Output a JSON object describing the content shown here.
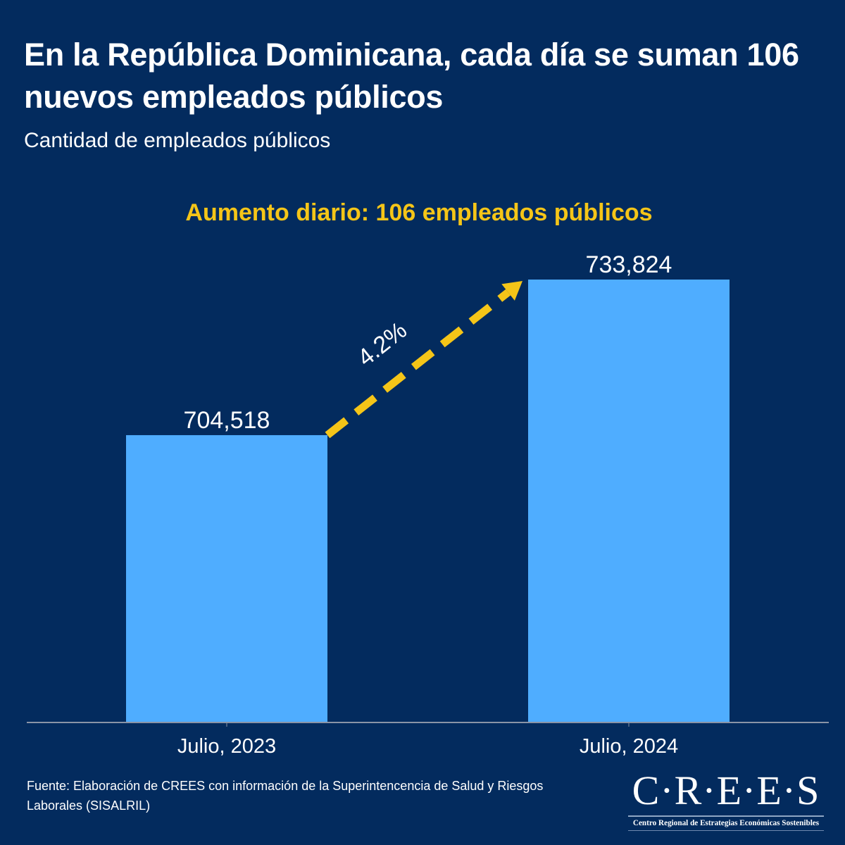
{
  "header": {
    "title": "En la República Dominicana, cada día se suman 106 nuevos empleados públicos",
    "subtitle": "Cantidad de empleados públicos"
  },
  "footer": {
    "source": "Fuente: Elaboración de CREES con información de la Superintencencia de Salud y Riesgos Laborales (SISALRIL)",
    "logo_mark": "C·R·E·E·S",
    "logo_subtitle": "Centro Regional de Estrategias Económicas Sostenibles"
  },
  "colors": {
    "background": "#032B5E",
    "bar": "#4FADFF",
    "highlight": "#F5C518",
    "text": "#FFFFFF",
    "axis": "#8A94A6"
  },
  "chart_data": {
    "type": "bar",
    "title": "Aumento diario: 106 empleados públicos",
    "xlabel": "",
    "ylabel": "",
    "categories": [
      "Julio, 2023",
      "Julio, 2024"
    ],
    "values": [
      704518,
      733824
    ],
    "data_labels": [
      "704,518",
      "733,824"
    ],
    "ylim": [
      650400,
      740000
    ],
    "grid": false,
    "legend": "none",
    "annotations": [
      {
        "type": "arrow",
        "from": "Julio, 2023",
        "to": "Julio, 2024",
        "style": "dashed",
        "label": "4.2%"
      }
    ]
  }
}
